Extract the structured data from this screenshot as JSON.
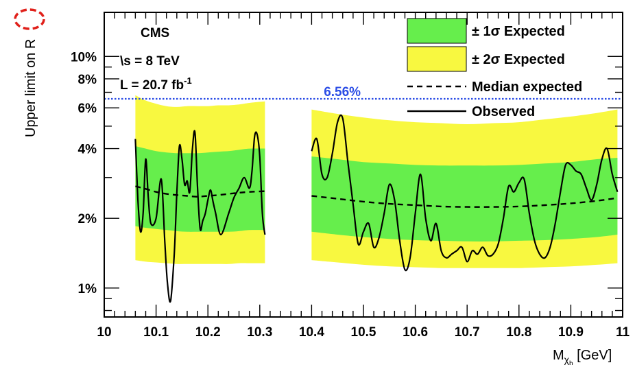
{
  "chart_data": {
    "type": "line",
    "experiment": "CMS",
    "energy": "\\s = 8 TeV",
    "luminosity": "L = 20.7 fb",
    "luminosity_exp": "-1",
    "ylabel_main": "Upper limit on ",
    "ylabel_symbol": "R",
    "xlabel_main": "M",
    "xlabel_sub": "χ",
    "xlabel_subsub": "b",
    "xlabel_unit": " [GeV]",
    "x_ticks": [
      "10",
      "10.1",
      "10.2",
      "10.3",
      "10.4",
      "10.5",
      "10.6",
      "10.7",
      "10.8",
      "10.9",
      "11"
    ],
    "y_ticks": [
      {
        "value": 1,
        "label": "1%"
      },
      {
        "value": 2,
        "label": "2%"
      },
      {
        "value": 4,
        "label": "4%"
      },
      {
        "value": 6,
        "label": "6%"
      },
      {
        "value": 8,
        "label": "8%"
      },
      {
        "value": 10,
        "label": "10%"
      }
    ],
    "xlim": [
      10.0,
      11.0
    ],
    "ylim": [
      0.75,
      15.5
    ],
    "y_scale": "log",
    "legend_position": "top-right",
    "legend": [
      {
        "label": "± 1σ Expected",
        "color": "#66ee4c",
        "kind": "box"
      },
      {
        "label": "± 2σ Expected",
        "color": "#f8f840",
        "kind": "box"
      },
      {
        "label": "Median expected",
        "kind": "dashed"
      },
      {
        "label": "Observed",
        "kind": "solid"
      }
    ],
    "reference_line": {
      "value": 6.56,
      "label": "6.56%",
      "color": "#2b4de6"
    },
    "colors": {
      "one_sigma": "#66ee4c",
      "two_sigma": "#f8f840",
      "line": "#000000",
      "highlight": "#e0201a"
    },
    "ranges": [
      {
        "x": [
          10.06,
          10.08,
          10.1,
          10.12,
          10.14,
          10.16,
          10.18,
          10.2,
          10.22,
          10.24,
          10.26,
          10.28,
          10.31
        ],
        "plus2sigma": [
          6.8,
          6.45,
          6.25,
          6.1,
          6.05,
          6.1,
          6.1,
          6.1,
          6.15,
          6.15,
          6.2,
          6.3,
          6.4
        ],
        "plus1sigma": [
          4.1,
          4.0,
          3.9,
          3.85,
          3.82,
          3.82,
          3.82,
          3.85,
          3.88,
          3.9,
          3.95,
          4.0,
          4.0
        ],
        "median": [
          2.75,
          2.68,
          2.6,
          2.55,
          2.52,
          2.5,
          2.48,
          2.5,
          2.52,
          2.55,
          2.58,
          2.6,
          2.62
        ],
        "minus1sigma": [
          1.85,
          1.82,
          1.8,
          1.78,
          1.76,
          1.75,
          1.75,
          1.75,
          1.75,
          1.75,
          1.76,
          1.78,
          1.78
        ],
        "minus2sigma": [
          1.32,
          1.3,
          1.29,
          1.28,
          1.27,
          1.27,
          1.27,
          1.27,
          1.27,
          1.27,
          1.28,
          1.28,
          1.28
        ],
        "observed": {
          "x": [
            10.06,
            10.065,
            10.07,
            10.075,
            10.08,
            10.085,
            10.09,
            10.1,
            10.11,
            10.117,
            10.122,
            10.128,
            10.135,
            10.14,
            10.145,
            10.15,
            10.155,
            10.16,
            10.165,
            10.17,
            10.175,
            10.18,
            10.185,
            10.19,
            10.195,
            10.2,
            10.205,
            10.21,
            10.215,
            10.225,
            10.24,
            10.25,
            10.26,
            10.27,
            10.28,
            10.285,
            10.29,
            10.295,
            10.3,
            10.305,
            10.31
          ],
          "y": [
            4.4,
            2.4,
            1.75,
            2.1,
            3.6,
            2.45,
            1.9,
            2.0,
            2.95,
            1.55,
            1.05,
            0.88,
            1.4,
            2.55,
            4.1,
            3.6,
            2.8,
            2.9,
            2.6,
            3.95,
            4.7,
            2.7,
            1.8,
            1.95,
            2.1,
            2.4,
            2.65,
            2.35,
            2.1,
            1.7,
            2.1,
            2.45,
            2.7,
            3.0,
            2.7,
            3.2,
            4.5,
            4.6,
            3.7,
            2.1,
            1.7
          ]
        }
      },
      {
        "x": [
          10.4,
          10.45,
          10.5,
          10.55,
          10.6,
          10.65,
          10.7,
          10.75,
          10.8,
          10.85,
          10.9,
          10.95,
          10.99
        ],
        "plus2sigma": [
          5.9,
          5.65,
          5.45,
          5.3,
          5.2,
          5.15,
          5.1,
          5.15,
          5.2,
          5.35,
          5.5,
          5.7,
          5.9
        ],
        "plus1sigma": [
          3.7,
          3.6,
          3.5,
          3.45,
          3.4,
          3.38,
          3.38,
          3.38,
          3.4,
          3.45,
          3.5,
          3.6,
          3.65
        ],
        "median": [
          2.5,
          2.43,
          2.36,
          2.31,
          2.28,
          2.25,
          2.24,
          2.24,
          2.25,
          2.28,
          2.32,
          2.38,
          2.45
        ],
        "minus1sigma": [
          1.75,
          1.7,
          1.66,
          1.63,
          1.61,
          1.6,
          1.59,
          1.59,
          1.6,
          1.61,
          1.63,
          1.66,
          1.7
        ],
        "minus2sigma": [
          1.32,
          1.29,
          1.26,
          1.24,
          1.23,
          1.22,
          1.22,
          1.22,
          1.22,
          1.23,
          1.24,
          1.26,
          1.28
        ],
        "observed": {
          "x": [
            10.4,
            10.41,
            10.42,
            10.43,
            10.44,
            10.45,
            10.46,
            10.47,
            10.48,
            10.49,
            10.5,
            10.51,
            10.52,
            10.53,
            10.54,
            10.55,
            10.56,
            10.57,
            10.58,
            10.59,
            10.6,
            10.61,
            10.62,
            10.63,
            10.64,
            10.65,
            10.66,
            10.67,
            10.68,
            10.69,
            10.7,
            10.71,
            10.72,
            10.73,
            10.74,
            10.75,
            10.76,
            10.77,
            10.78,
            10.79,
            10.8,
            10.81,
            10.82,
            10.83,
            10.84,
            10.85,
            10.86,
            10.87,
            10.88,
            10.89,
            10.9,
            10.91,
            10.92,
            10.93,
            10.94,
            10.95,
            10.96,
            10.97,
            10.98,
            10.99
          ],
          "y": [
            3.9,
            4.4,
            3.1,
            3.0,
            3.8,
            5.2,
            5.4,
            3.5,
            2.3,
            1.55,
            1.75,
            1.9,
            1.5,
            1.65,
            2.1,
            2.8,
            2.4,
            1.6,
            1.2,
            1.35,
            2.1,
            3.1,
            2.0,
            1.6,
            1.9,
            1.45,
            1.35,
            1.4,
            1.45,
            1.5,
            1.3,
            1.45,
            1.4,
            1.5,
            1.38,
            1.4,
            1.55,
            2.0,
            2.75,
            2.6,
            2.85,
            2.95,
            2.1,
            1.6,
            1.4,
            1.35,
            1.5,
            1.9,
            2.6,
            3.4,
            3.4,
            3.2,
            3.1,
            2.7,
            2.4,
            2.8,
            3.6,
            4.0,
            3.1,
            2.6
          ]
        }
      }
    ]
  }
}
